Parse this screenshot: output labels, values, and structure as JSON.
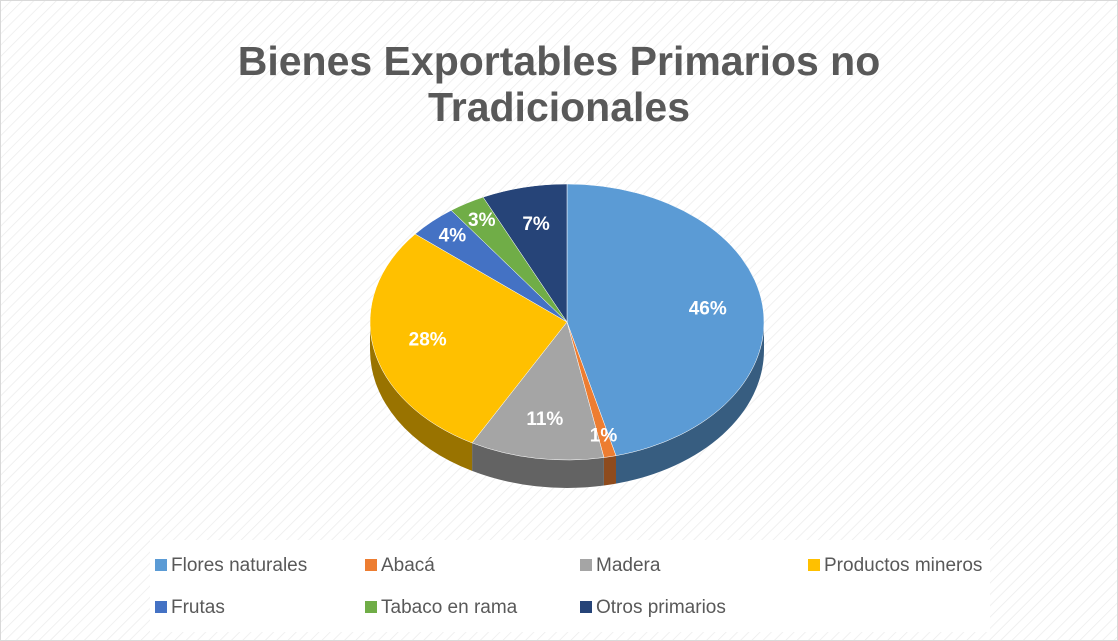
{
  "chart_data": {
    "type": "pie",
    "title": "Bienes Exportables Primarios no Tradicionales",
    "categories": [
      "Flores naturales",
      "Abacá",
      "Madera",
      "Productos mineros",
      "Frutas",
      "Tabaco en rama",
      "Otros primarios"
    ],
    "values": [
      46,
      1,
      11,
      28,
      4,
      3,
      7
    ],
    "value_labels": [
      "46%",
      "1%",
      "11%",
      "28%",
      "4%",
      "3%",
      "7%"
    ],
    "colors": [
      "#5b9bd5",
      "#ed7d31",
      "#a5a5a5",
      "#ffc000",
      "#4472c4",
      "#70ad47",
      "#264478"
    ],
    "legend": "bottom"
  }
}
